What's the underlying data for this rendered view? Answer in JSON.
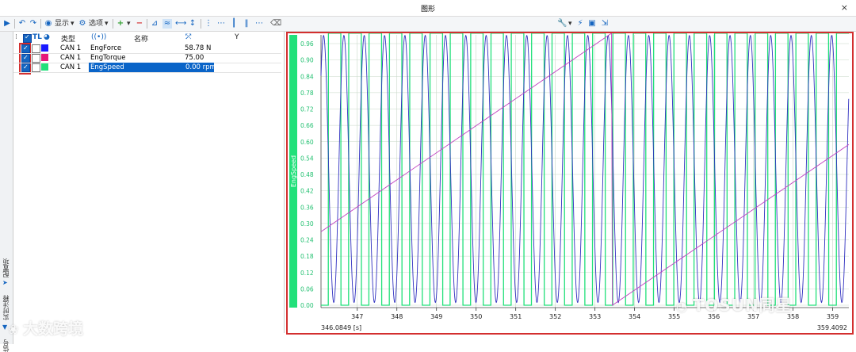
{
  "window": {
    "title": "图形",
    "close_glyph": "×"
  },
  "toolbar": {
    "display_label": "显示",
    "options_label": "选项"
  },
  "signal_table": {
    "headers": {
      "tl": "TL",
      "type": "类型",
      "name": "名称",
      "y": "Y"
    },
    "rows": [
      {
        "type": "CAN 1",
        "name": "EngForce",
        "value": "58.78 N",
        "color": "#1a1aff",
        "checked": true,
        "selected": false
      },
      {
        "type": "CAN 1",
        "name": "EngTorque",
        "value": "75.00",
        "color": "#e6197a",
        "checked": true,
        "selected": false
      },
      {
        "type": "CAN 1",
        "name": "EngSpeed",
        "value": "0.00 rpm",
        "color": "#22e07a",
        "checked": true,
        "selected": true
      }
    ]
  },
  "side_tabs": [
    "配置项",
    "实时注释",
    "信号"
  ],
  "chart_data": {
    "type": "line",
    "y_axis_label": "EngSpeed",
    "y_ticks": [
      "0.00",
      "0.06",
      "0.12",
      "0.18",
      "0.24",
      "0.30",
      "0.36",
      "0.42",
      "0.48",
      "0.54",
      "0.60",
      "0.66",
      "0.72",
      "0.78",
      "0.84",
      "0.90",
      "0.96"
    ],
    "x_ticks": [
      "347",
      "348",
      "349",
      "350",
      "351",
      "352",
      "353",
      "354",
      "355",
      "356",
      "357",
      "358",
      "359"
    ],
    "x_start_label": "346.0849 [s]",
    "x_end_label": "359.4092",
    "xlim": [
      346.0849,
      359.4092
    ],
    "ylim": [
      0,
      1.0
    ],
    "grid": true,
    "series": [
      {
        "color": "#22e07a",
        "values": []
      },
      {
        "color": "#3030c0",
        "values": []
      },
      {
        "color": "#c040c0",
        "values": []
      }
    ]
  },
  "watermarks": {
    "left": "大数跨境",
    "right": "TOSUN同星"
  }
}
